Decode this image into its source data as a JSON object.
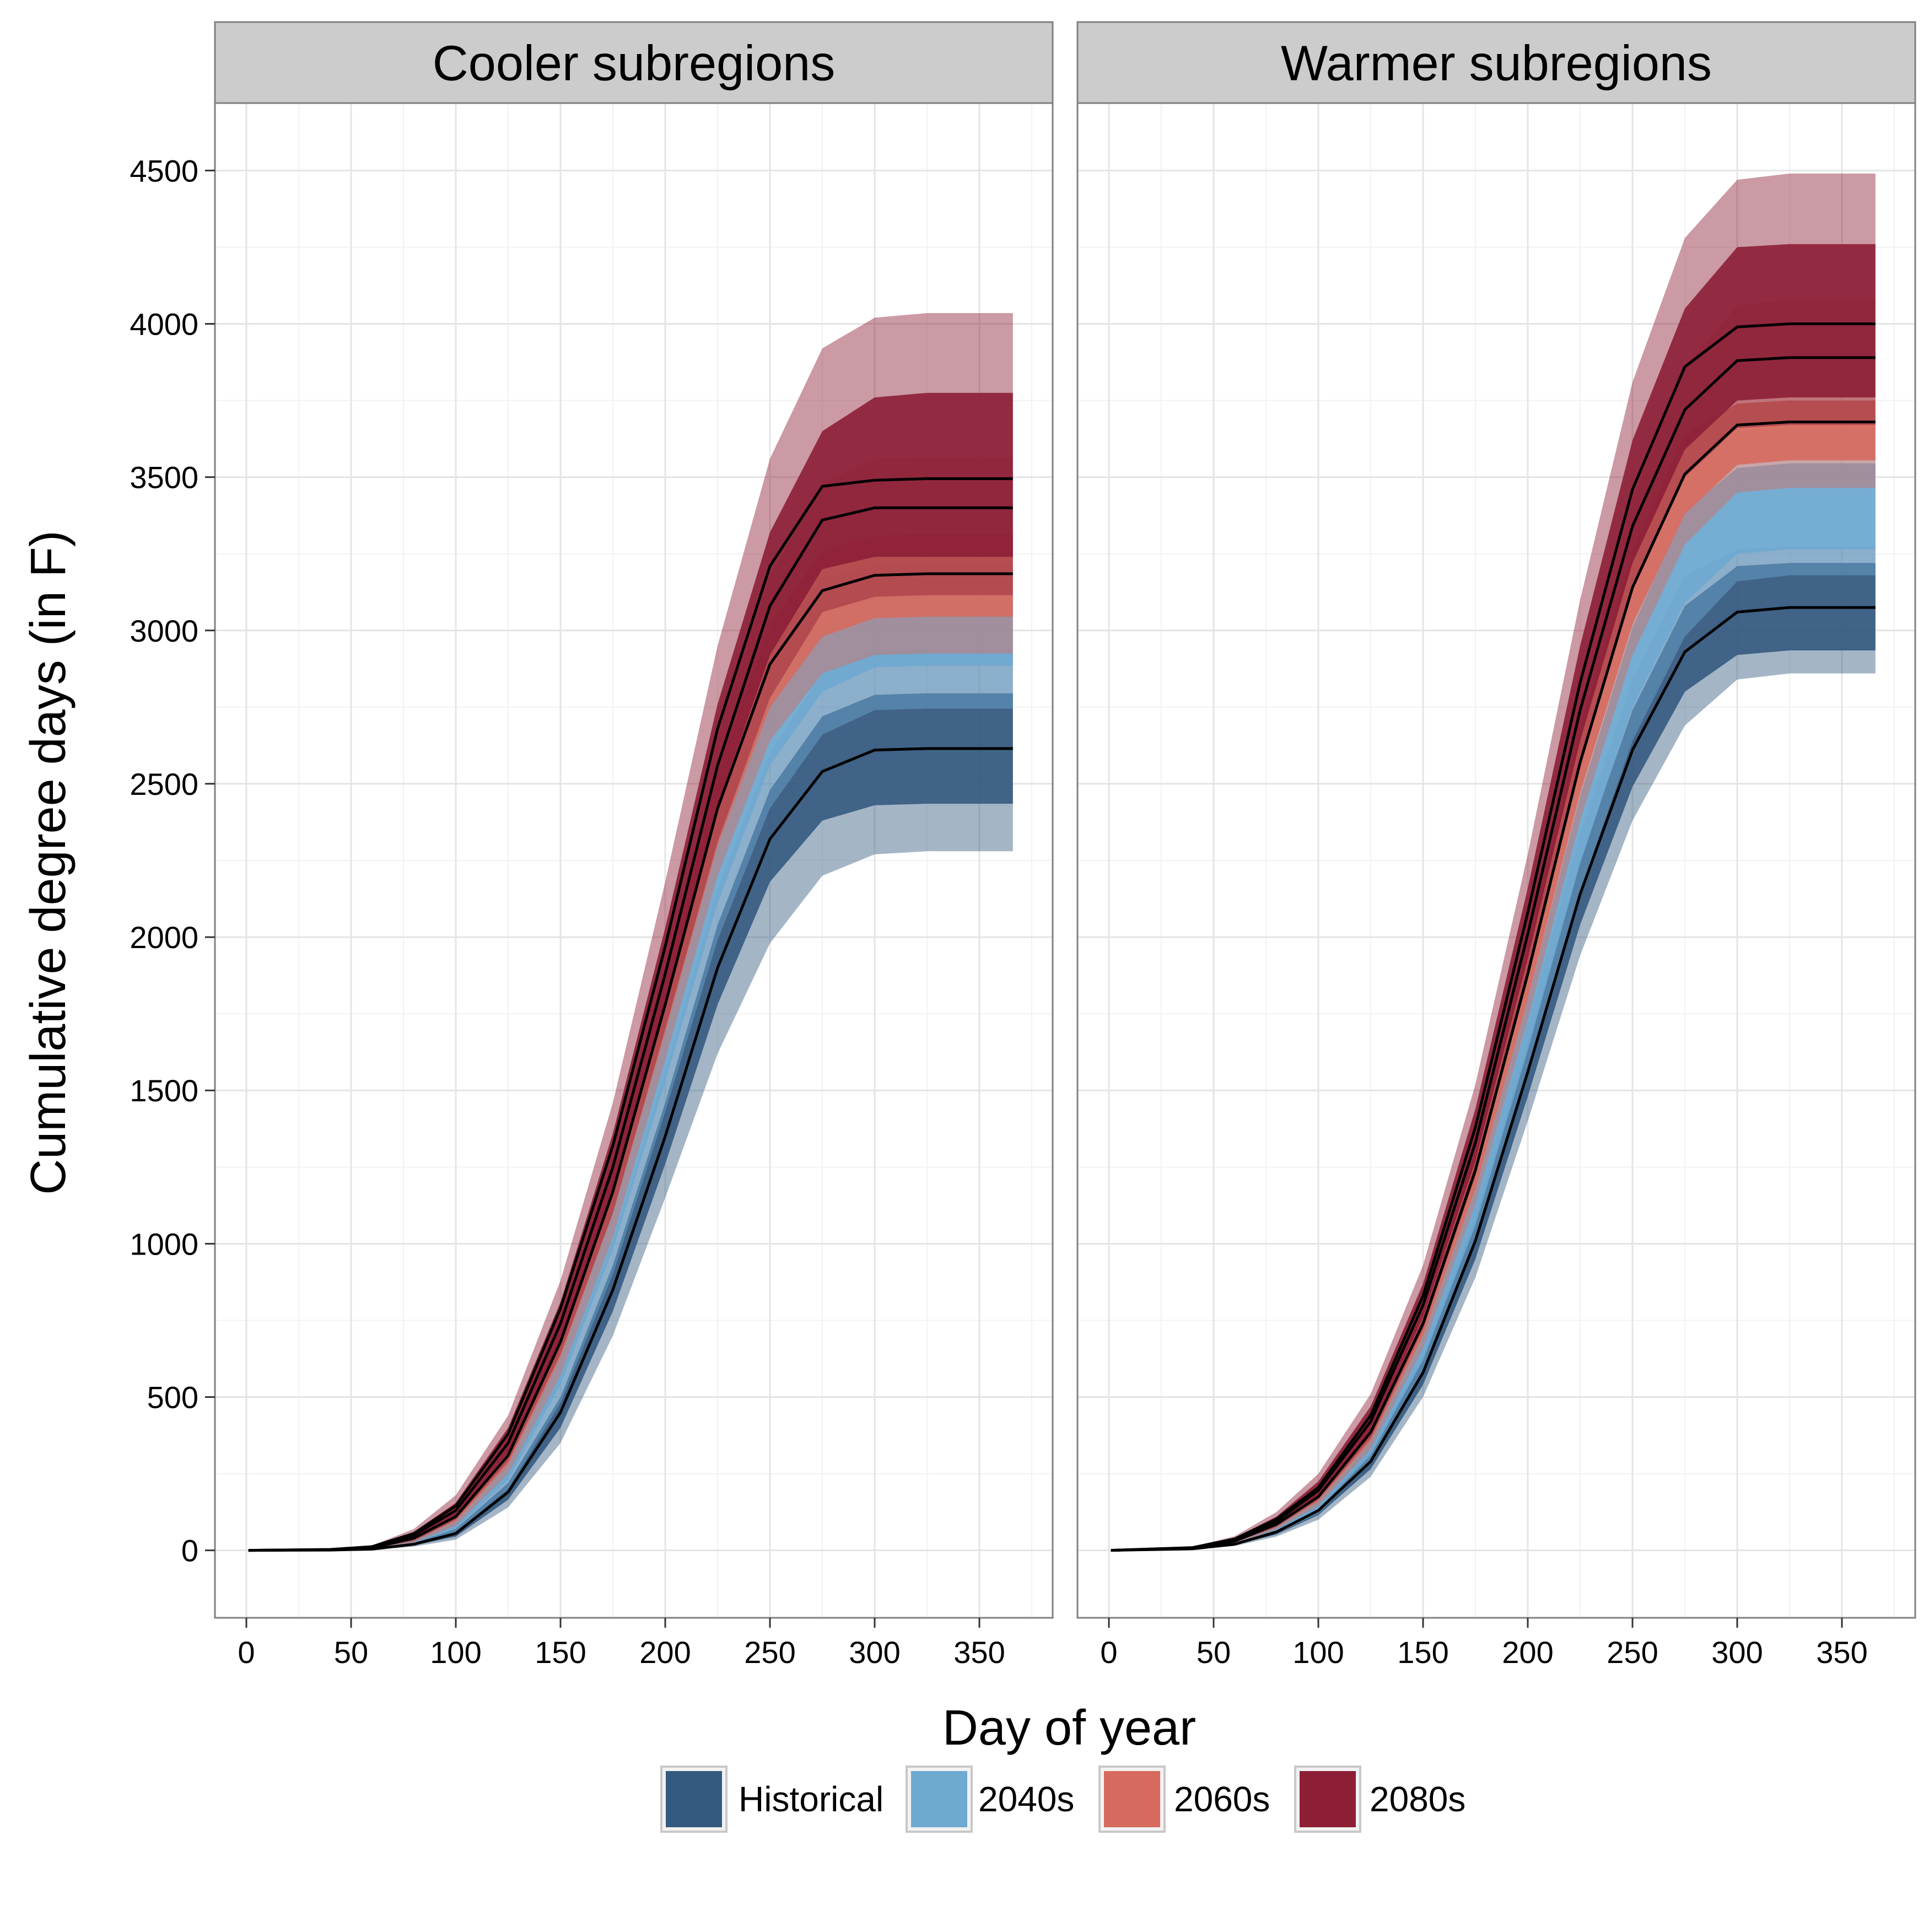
{
  "chart_data": {
    "type": "area",
    "xlabel": "Day of year",
    "ylabel": "Cumulative degree days (in F)",
    "xlim": [
      -15,
      385
    ],
    "ylim": [
      -220,
      4720
    ],
    "xticks": [
      0,
      50,
      100,
      150,
      200,
      250,
      300,
      350
    ],
    "yticks": [
      0,
      500,
      1000,
      1500,
      2000,
      2500,
      3000,
      3500,
      4000,
      4500
    ],
    "grid": true,
    "legend_position": "bottom",
    "legend": [
      {
        "label": "Historical",
        "color": "#355a80"
      },
      {
        "label": "2040s",
        "color": "#6ea9d0"
      },
      {
        "label": "2060s",
        "color": "#d66a5e"
      },
      {
        "label": "2080s",
        "color": "#8c1f36"
      }
    ],
    "panels": [
      {
        "title": "Cooler subregions",
        "x": [
          1,
          40,
          60,
          80,
          100,
          125,
          150,
          175,
          200,
          225,
          250,
          275,
          300,
          325,
          350,
          366
        ],
        "series": [
          {
            "name": "Historical",
            "color": "#355a80",
            "median": [
              0,
              1,
              4,
              20,
              55,
              190,
              450,
              850,
              1350,
              1900,
              2320,
              2540,
              2610,
              2615,
              2615,
              2615
            ],
            "inner_low": [
              0,
              0,
              3,
              16,
              45,
              165,
              400,
              780,
              1260,
              1780,
              2180,
              2380,
              2430,
              2435,
              2435,
              2435
            ],
            "inner_high": [
              0,
              1,
              5,
              25,
              70,
              220,
              500,
              930,
              1460,
              2040,
              2480,
              2720,
              2790,
              2795,
              2795,
              2795
            ],
            "outer_low": [
              0,
              0,
              2,
              12,
              35,
              140,
              350,
              700,
              1150,
              1620,
              1980,
              2200,
              2270,
              2280,
              2280,
              2280
            ],
            "outer_high": [
              0,
              2,
              7,
              30,
              90,
              260,
              570,
              1010,
              1560,
              2160,
              2600,
              2860,
              2930,
              2940,
              2940,
              2940
            ]
          },
          {
            "name": "2040s",
            "color": "#6ea9d0",
            "median": [
              0,
              1,
              6,
              30,
              85,
              260,
              590,
              1050,
              1620,
              2230,
              2700,
              2950,
              3030,
              3035,
              3035,
              3035
            ],
            "inner_low": [
              0,
              1,
              5,
              25,
              70,
              230,
              540,
              980,
              1530,
              2110,
              2560,
              2800,
              2880,
              2885,
              2885,
              2885
            ],
            "inner_high": [
              0,
              2,
              8,
              36,
              100,
              290,
              640,
              1120,
              1720,
              2360,
              2840,
              3080,
              3110,
              3115,
              3115,
              3115
            ],
            "outer_low": [
              0,
              0,
              4,
              20,
              60,
              200,
              480,
              900,
              1430,
              1990,
              2420,
              2660,
              2740,
              2745,
              2745,
              2745
            ],
            "outer_high": [
              0,
              2,
              10,
              42,
              120,
              320,
              700,
              1190,
              1800,
              2450,
              2930,
              3170,
              3210,
              3215,
              3215,
              3215
            ]
          },
          {
            "name": "2060s",
            "color": "#d66a5e",
            "median": [
              0,
              2,
              8,
              40,
              110,
              310,
              680,
              1170,
              1780,
              2420,
              2890,
              3130,
              3180,
              3185,
              3185,
              3185
            ],
            "inner_low": [
              0,
              1,
              6,
              32,
              95,
              280,
              630,
              1100,
              1690,
              2300,
              2750,
              2980,
              3040,
              3045,
              3045,
              3045
            ],
            "inner_high": [
              0,
              2,
              10,
              48,
              125,
              340,
              730,
              1240,
              1870,
              2540,
              3020,
              3260,
              3310,
              3315,
              3315,
              3315
            ],
            "outer_low": [
              0,
              1,
              5,
              25,
              80,
              250,
              570,
              1020,
              1600,
              2200,
              2640,
              2860,
              2920,
              2925,
              2925,
              2925
            ],
            "outer_high": [
              0,
              3,
              12,
              55,
              145,
              370,
              780,
              1300,
              1960,
              2660,
              3180,
              3480,
              3560,
              3565,
              3565,
              3565
            ]
          },
          {
            "name": "2080s",
            "color": "#8c1f36",
            "median": [
              0,
              2,
              10,
              50,
              130,
              350,
              740,
              1250,
              1880,
              2560,
              3080,
              3360,
              3400,
              3400,
              3400,
              3400
            ],
            "inner_low": [
              0,
              1,
              8,
              40,
              115,
              320,
              690,
              1180,
              1790,
              2430,
              2920,
              3200,
              3240,
              3240,
              3240,
              3240
            ],
            "inner_high": [
              0,
              3,
              13,
              60,
              155,
              400,
              810,
              1360,
              2030,
              2760,
              3320,
              3650,
              3760,
              3775,
              3775,
              3775
            ],
            "outer_low": [
              0,
              1,
              6,
              30,
              100,
              290,
              640,
              1100,
              1700,
              2310,
              2780,
              3060,
              3110,
              3115,
              3115,
              3115
            ],
            "outer_high": [
              0,
              4,
              16,
              70,
              180,
              440,
              880,
              1460,
              2180,
              2950,
              3560,
              3920,
              4020,
              4035,
              4035,
              4035
            ]
          }
        ],
        "median_lines": [
          [
            0,
            1,
            4,
            20,
            55,
            190,
            450,
            850,
            1350,
            1900,
            2320,
            2540,
            2610,
            2615,
            2615,
            2615
          ],
          [
            0,
            2,
            8,
            40,
            110,
            310,
            680,
            1170,
            1780,
            2420,
            2890,
            3130,
            3180,
            3185,
            3185,
            3185
          ],
          [
            0,
            2,
            10,
            50,
            130,
            350,
            740,
            1250,
            1880,
            2560,
            3080,
            3360,
            3400,
            3400,
            3400,
            3400
          ],
          [
            0,
            3,
            12,
            55,
            145,
            380,
            790,
            1320,
            1970,
            2680,
            3210,
            3470,
            3490,
            3495,
            3495,
            3495
          ]
        ]
      },
      {
        "title": "Warmer subregions",
        "x": [
          1,
          40,
          60,
          80,
          100,
          125,
          150,
          175,
          200,
          225,
          250,
          275,
          300,
          325,
          350,
          366
        ],
        "series": [
          {
            "name": "Historical",
            "color": "#355a80",
            "median": [
              0,
              5,
              20,
              60,
              130,
              290,
              580,
              1010,
              1560,
              2140,
              2610,
              2930,
              3060,
              3075,
              3075,
              3075
            ],
            "inner_low": [
              0,
              4,
              17,
              52,
              115,
              265,
              540,
              950,
              1480,
              2040,
              2490,
              2800,
              2920,
              2935,
              2935,
              2935
            ],
            "inner_high": [
              0,
              6,
              24,
              70,
              145,
              320,
              630,
              1080,
              1650,
              2250,
              2740,
              3080,
              3210,
              3220,
              3220,
              3220
            ],
            "outer_low": [
              0,
              3,
              14,
              45,
              100,
              240,
              500,
              890,
              1400,
              1940,
              2380,
              2690,
              2840,
              2860,
              2860,
              2860
            ],
            "outer_high": [
              0,
              7,
              28,
              78,
              160,
              345,
              670,
              1130,
              1720,
              2340,
              2840,
              3180,
              3265,
              3275,
              3275,
              3275
            ]
          },
          {
            "name": "2040s",
            "color": "#6ea9d0",
            "median": [
              0,
              6,
              25,
              72,
              150,
              340,
              660,
              1120,
              1710,
              2340,
              2870,
              3230,
              3390,
              3400,
              3400,
              3400
            ],
            "inner_low": [
              0,
              5,
              21,
              64,
              135,
              310,
              620,
              1060,
              1630,
              2240,
              2750,
              3090,
              3250,
              3265,
              3265,
              3265
            ],
            "inner_high": [
              0,
              7,
              29,
              82,
              170,
              375,
              710,
              1190,
              1800,
              2460,
              3010,
              3390,
              3530,
              3545,
              3545,
              3545
            ],
            "outer_low": [
              0,
              4,
              18,
              55,
              120,
              285,
              580,
              1010,
              1560,
              2150,
              2640,
              2980,
              3160,
              3180,
              3180,
              3180
            ],
            "outer_high": [
              0,
              8,
              33,
              90,
              185,
              400,
              750,
              1250,
              1880,
              2560,
              3130,
              3520,
              3650,
              3660,
              3660,
              3660
            ]
          },
          {
            "name": "2060s",
            "color": "#d66a5e",
            "median": [
              0,
              7,
              30,
              85,
              175,
              385,
              740,
              1240,
              1880,
              2570,
              3140,
              3510,
              3670,
              3680,
              3680,
              3680
            ],
            "inner_low": [
              0,
              6,
              26,
              76,
              160,
              355,
              700,
              1180,
              1800,
              2470,
              3020,
              3380,
              3540,
              3555,
              3555,
              3555
            ],
            "inner_high": [
              0,
              8,
              34,
              95,
              190,
              415,
              780,
              1300,
              1960,
              2680,
              3260,
              3640,
              3740,
              3750,
              3750,
              3750
            ],
            "outer_low": [
              0,
              5,
              22,
              68,
              145,
              330,
              660,
              1130,
              1730,
              2380,
              2920,
              3280,
              3450,
              3465,
              3465,
              3465
            ],
            "outer_high": [
              0,
              9,
              38,
              105,
              210,
              450,
              830,
              1370,
              2060,
              2810,
              3430,
              3860,
              4060,
              4080,
              4080,
              4080
            ]
          },
          {
            "name": "2080s",
            "color": "#8c1f36",
            "median": [
              0,
              8,
              34,
              95,
              195,
              420,
              800,
              1330,
              2010,
              2740,
              3340,
              3720,
              3880,
              3890,
              3890,
              3890
            ],
            "inner_low": [
              0,
              7,
              29,
              85,
              180,
              390,
              760,
              1270,
              1930,
              2640,
              3220,
              3590,
              3750,
              3760,
              3760,
              3760
            ],
            "inner_high": [
              0,
              10,
              40,
              110,
              225,
              470,
              870,
              1440,
              2160,
              2950,
              3620,
              4050,
              4250,
              4260,
              4260,
              4260
            ],
            "outer_low": [
              0,
              6,
              25,
              76,
              165,
              365,
              720,
              1220,
              1870,
              2560,
              3130,
              3500,
              3660,
              3670,
              3670,
              3670
            ],
            "outer_high": [
              0,
              12,
              46,
              125,
              250,
              510,
              930,
              1520,
              2270,
              3100,
              3810,
              4280,
              4470,
              4490,
              4490,
              4490
            ]
          }
        ],
        "median_lines": [
          [
            0,
            5,
            20,
            60,
            130,
            290,
            580,
            1010,
            1560,
            2140,
            2610,
            2930,
            3060,
            3075,
            3075,
            3075
          ],
          [
            0,
            7,
            30,
            85,
            175,
            385,
            740,
            1240,
            1880,
            2570,
            3140,
            3510,
            3670,
            3680,
            3680,
            3680
          ],
          [
            0,
            8,
            34,
            95,
            195,
            420,
            800,
            1330,
            2010,
            2740,
            3340,
            3720,
            3880,
            3890,
            3890,
            3890
          ],
          [
            0,
            9,
            37,
            102,
            205,
            440,
            830,
            1380,
            2080,
            2830,
            3460,
            3860,
            3990,
            4000,
            4000,
            4000
          ]
        ]
      }
    ]
  }
}
